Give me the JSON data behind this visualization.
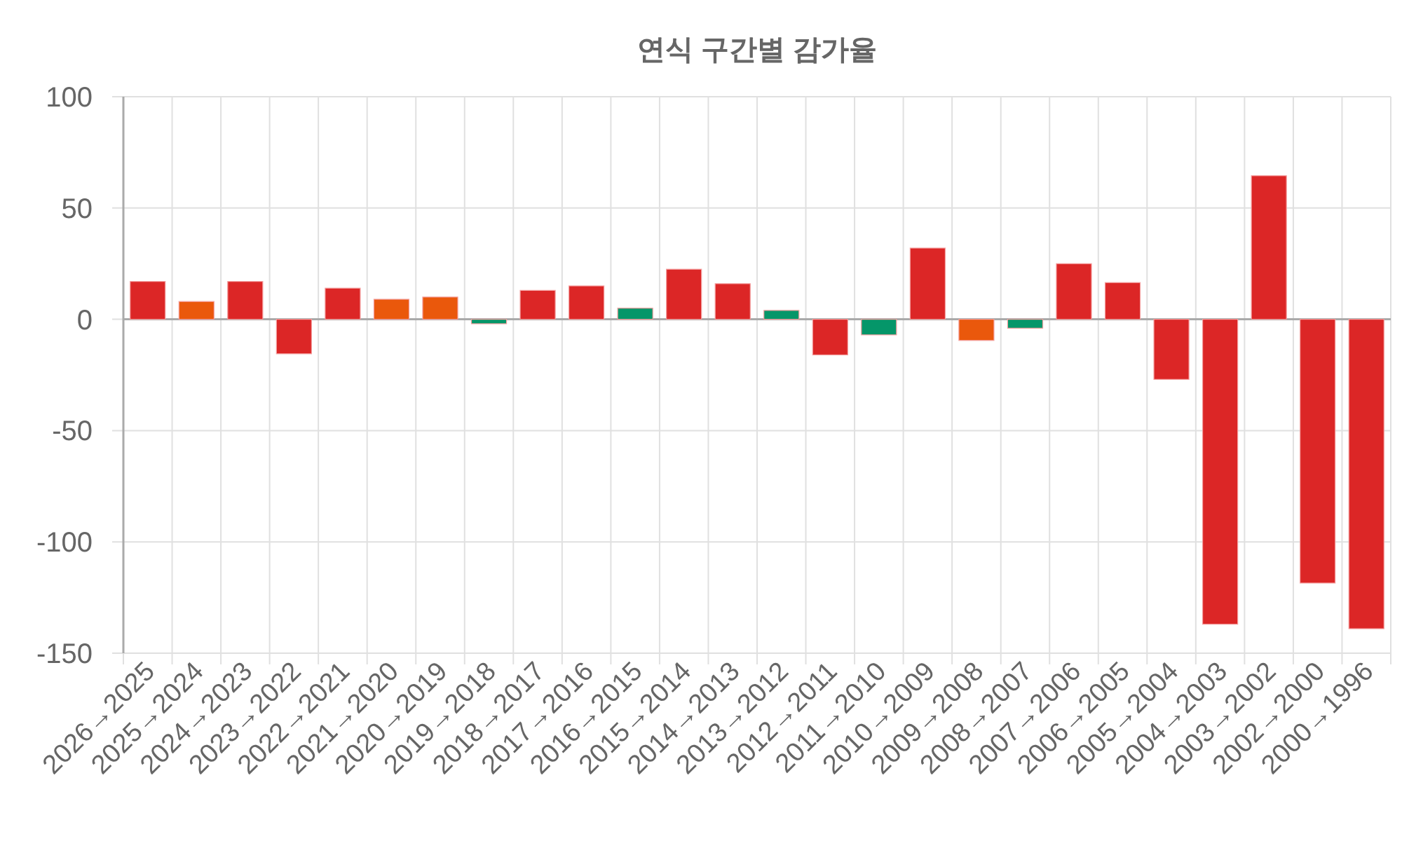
{
  "chart_data": {
    "type": "bar",
    "title": "연식 구간별 감가율",
    "categories": [
      "2026→2025",
      "2025→2024",
      "2024→2023",
      "2023→2022",
      "2022→2021",
      "2021→2020",
      "2020→2019",
      "2019→2018",
      "2018→2017",
      "2017→2016",
      "2016→2015",
      "2015→2014",
      "2014→2013",
      "2013→2012",
      "2012→2011",
      "2011→2010",
      "2010→2009",
      "2009→2008",
      "2008→2007",
      "2007→2006",
      "2006→2005",
      "2005→2004",
      "2004→2003",
      "2003→2002",
      "2002→2000",
      "2000→1996"
    ],
    "values": [
      17,
      8,
      17,
      -15.5,
      14,
      9,
      10,
      -2,
      13,
      15,
      5,
      22.5,
      16,
      4,
      -16,
      -7,
      32,
      -9.5,
      -4,
      25,
      16.5,
      -27,
      -137,
      64.5,
      -118.5,
      -139
    ],
    "colors": [
      "#dc2626",
      "#ea580c",
      "#dc2626",
      "#dc2626",
      "#dc2626",
      "#ea580c",
      "#ea580c",
      "#059669",
      "#dc2626",
      "#dc2626",
      "#059669",
      "#dc2626",
      "#dc2626",
      "#059669",
      "#dc2626",
      "#059669",
      "#dc2626",
      "#ea580c",
      "#059669",
      "#dc2626",
      "#dc2626",
      "#dc2626",
      "#dc2626",
      "#dc2626",
      "#dc2626",
      "#dc2626"
    ],
    "ylim": [
      -150,
      100
    ],
    "yticks": [
      -150,
      -100,
      -50,
      0,
      50,
      100
    ],
    "grid": true
  }
}
